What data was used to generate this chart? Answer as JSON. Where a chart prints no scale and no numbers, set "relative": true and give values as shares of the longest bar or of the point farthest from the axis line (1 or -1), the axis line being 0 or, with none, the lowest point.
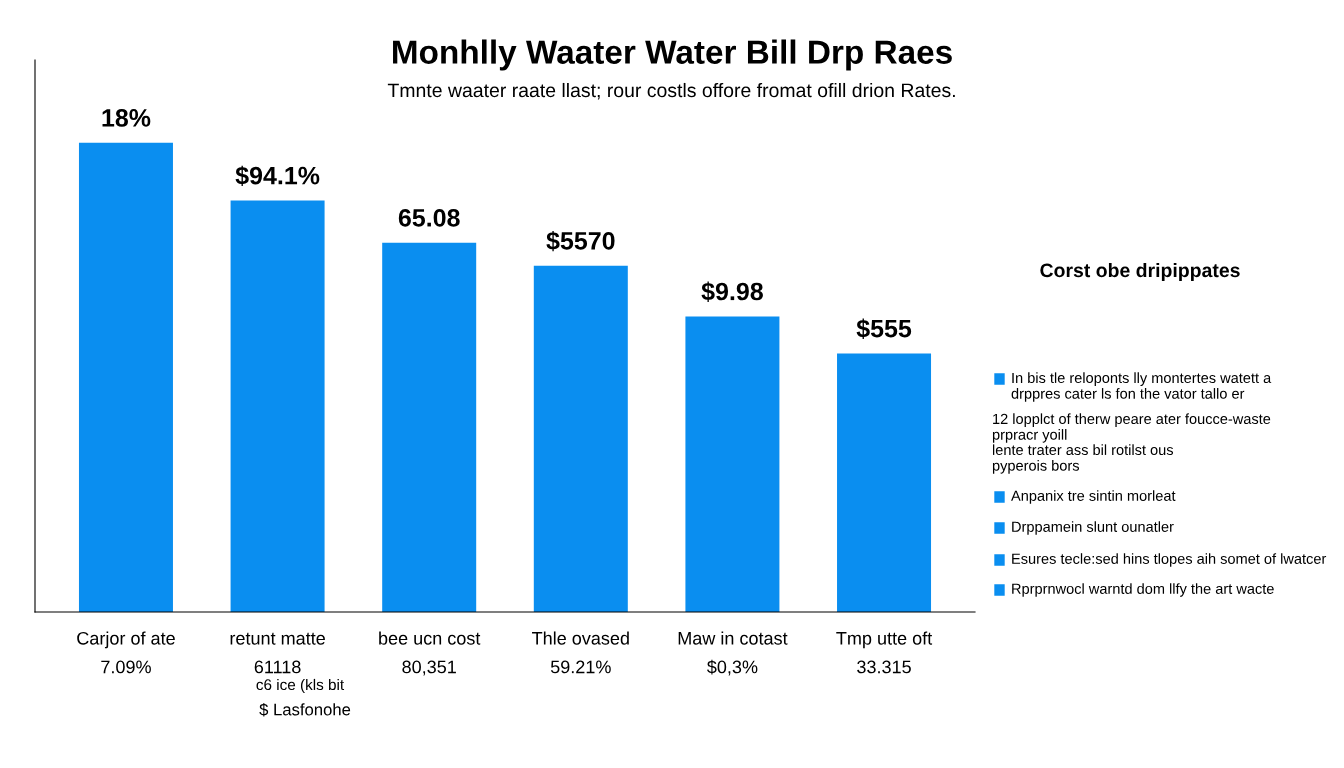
{
  "chart_data": {
    "type": "bar",
    "title": "Monhlly Waater Water Bill Drp Raes",
    "subtitle": "Tmnte waater raate llast; rour costls offore fromat ofill drion Rates.",
    "categories": [
      "Carjor of ate\n7.09%",
      "retunt matte\n61118",
      "bee ucn cost\n80,351",
      "Thle ovased\n59.21%",
      "Maw in cotast\n$0,3%",
      "Tmp utte oft\n33.315"
    ],
    "values": [
      1,
      0.877,
      0.787,
      0.738,
      0.63,
      0.551
    ],
    "color": "#0a8ef0",
    "relative": true,
    "grid": false,
    "annotations": [
      "18%",
      "$94.1%",
      "65.08",
      "$5570",
      "$9.98",
      "$555",
      "c6 ice (kls bit",
      "$ Lasfonohe",
      "Corst obe dripippates",
      "In bis tle reloponts lly montertes watett a\ndrppres cater ls fon the vator tallo er",
      "12 lopplct of therw peare ater foucce-waste\nprpracr yoill",
      "lente trater ass bil rotilst ous\npyperois bors",
      "Anpanix tre sintin morleat",
      "Drppamein slunt ounatler",
      "Esures tecle:sed hins tlopes aih somet of lwatcer",
      "Rprprnwocl warntd dom llfy the art wacte"
    ]
  }
}
